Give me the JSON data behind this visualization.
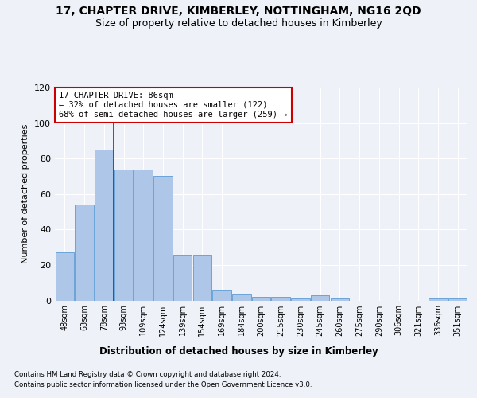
{
  "title": "17, CHAPTER DRIVE, KIMBERLEY, NOTTINGHAM, NG16 2QD",
  "subtitle": "Size of property relative to detached houses in Kimberley",
  "xlabel": "Distribution of detached houses by size in Kimberley",
  "ylabel": "Number of detached properties",
  "categories": [
    "48sqm",
    "63sqm",
    "78sqm",
    "93sqm",
    "109sqm",
    "124sqm",
    "139sqm",
    "154sqm",
    "169sqm",
    "184sqm",
    "200sqm",
    "215sqm",
    "230sqm",
    "245sqm",
    "260sqm",
    "275sqm",
    "290sqm",
    "306sqm",
    "321sqm",
    "336sqm",
    "351sqm"
  ],
  "values": [
    27,
    54,
    85,
    74,
    74,
    70,
    26,
    26,
    6,
    4,
    2,
    2,
    1,
    3,
    1,
    0,
    0,
    0,
    0,
    1,
    1
  ],
  "bar_color": "#aec6e8",
  "bar_edge_color": "#5b9bd5",
  "annotation_title": "17 CHAPTER DRIVE: 86sqm",
  "annotation_line1": "← 32% of detached houses are smaller (122)",
  "annotation_line2": "68% of semi-detached houses are larger (259) →",
  "ylim": [
    0,
    120
  ],
  "yticks": [
    0,
    20,
    40,
    60,
    80,
    100,
    120
  ],
  "footer_line1": "Contains HM Land Registry data © Crown copyright and database right 2024.",
  "footer_line2": "Contains public sector information licensed under the Open Government Licence v3.0.",
  "bg_color": "#eef2f8",
  "plot_bg_color": "#eef2f8",
  "grid_color": "#ffffff",
  "title_fontsize": 10,
  "subtitle_fontsize": 9,
  "annotation_box_color": "#ffffff",
  "annotation_box_edge": "#cc0000",
  "red_line_color": "#cc0000",
  "red_line_x": 2.5
}
